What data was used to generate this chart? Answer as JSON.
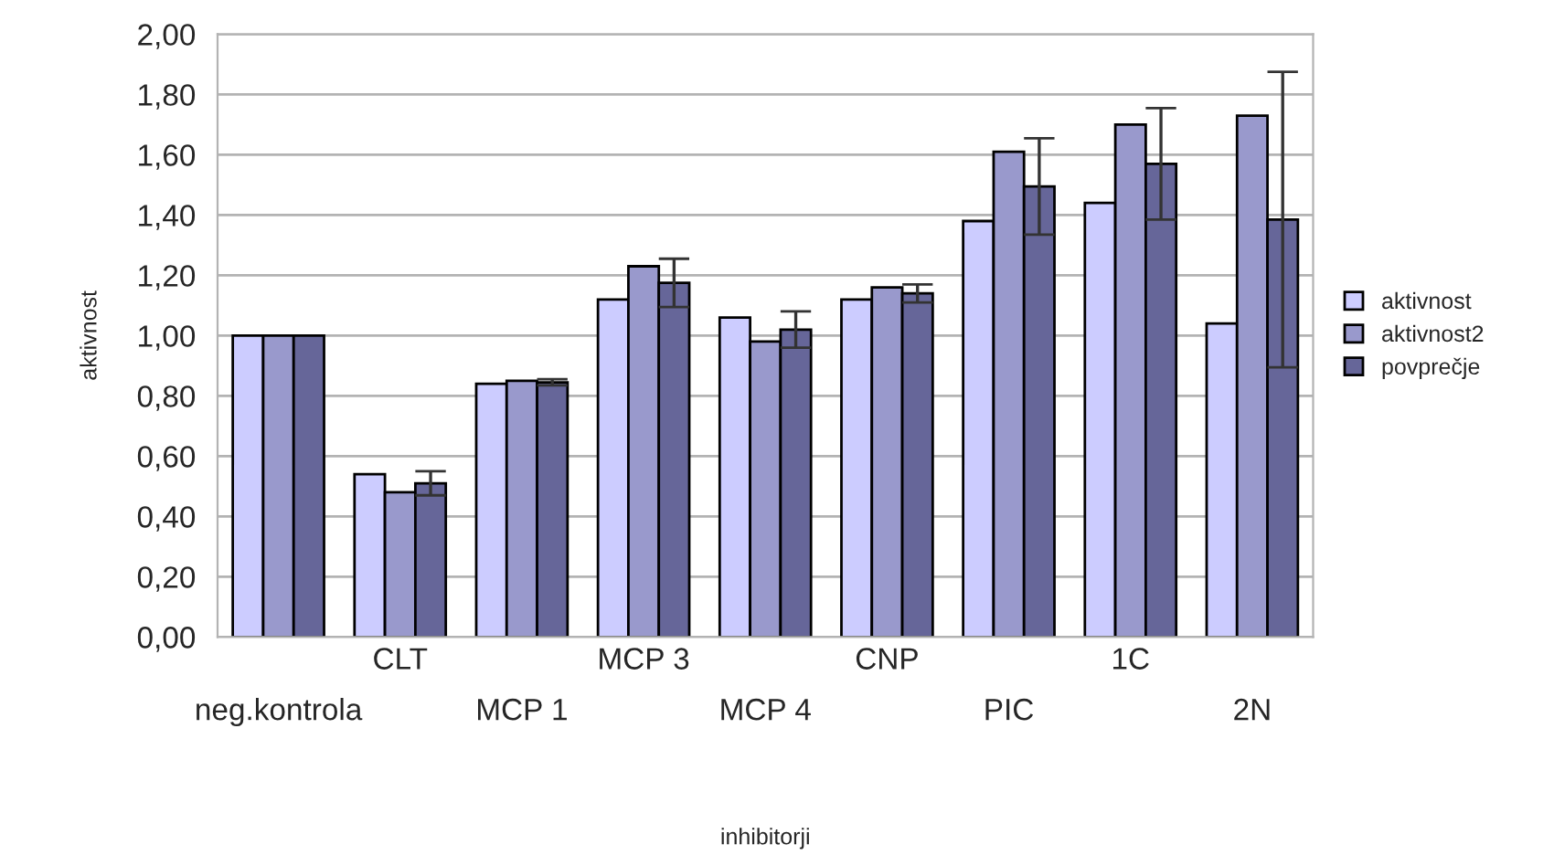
{
  "chart_data": {
    "type": "bar",
    "xlabel": "inhibitorji",
    "ylabel": "aktivnost",
    "categories": [
      "neg.kontrola",
      "CLT",
      "MCP 1",
      "MCP 3",
      "MCP 4",
      "CNP",
      "PIC",
      "1C",
      "2N"
    ],
    "series": [
      {
        "name": "aktivnost",
        "color": "#ccccff",
        "values": [
          1.0,
          0.54,
          0.84,
          1.12,
          1.06,
          1.12,
          1.38,
          1.44,
          1.04
        ]
      },
      {
        "name": "aktivnost2",
        "color": "#9999cc",
        "values": [
          1.0,
          0.48,
          0.85,
          1.23,
          0.98,
          1.16,
          1.61,
          1.7,
          1.73
        ]
      },
      {
        "name": "povprečje",
        "color": "#666699",
        "values": [
          1.0,
          0.51,
          0.845,
          1.175,
          1.02,
          1.14,
          1.495,
          1.57,
          1.385
        ],
        "errors": [
          null,
          0.04,
          0.01,
          0.08,
          0.06,
          0.03,
          0.16,
          0.185,
          0.49
        ]
      }
    ],
    "ylim": [
      0,
      2
    ],
    "yticks": [
      {
        "value": 0,
        "label": "0,00"
      },
      {
        "value": 0.2,
        "label": "0,20"
      },
      {
        "value": 0.4,
        "label": "0,40"
      },
      {
        "value": 0.6,
        "label": "0,60"
      },
      {
        "value": 0.8,
        "label": "0,80"
      },
      {
        "value": 1.0,
        "label": "1,00"
      },
      {
        "value": 1.2,
        "label": "1,20"
      },
      {
        "value": 1.4,
        "label": "1,40"
      },
      {
        "value": 1.6,
        "label": "1,60"
      },
      {
        "value": 1.8,
        "label": "1,80"
      },
      {
        "value": 2.0,
        "label": "2,00"
      }
    ],
    "grid": "y",
    "legend": "right"
  }
}
